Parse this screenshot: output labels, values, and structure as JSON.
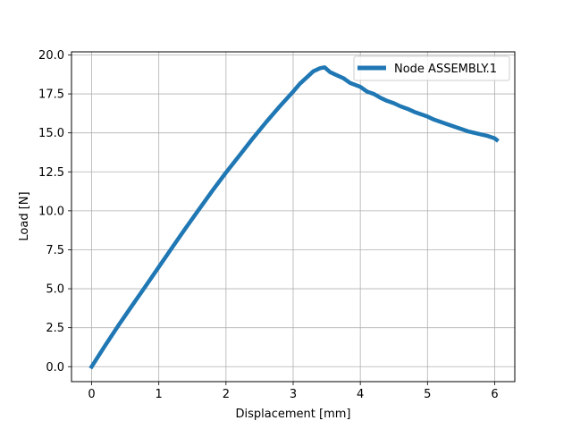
{
  "chart_data": {
    "type": "line",
    "title": "",
    "xlabel": "Displacement [mm]",
    "ylabel": "Load [N]",
    "xlim": [
      -0.3,
      6.3
    ],
    "ylim": [
      -0.96,
      20.2
    ],
    "xticks": [
      0,
      1,
      2,
      3,
      4,
      5,
      6
    ],
    "xtick_labels": [
      "0",
      "1",
      "2",
      "3",
      "4",
      "5",
      "6"
    ],
    "yticks": [
      0,
      2.5,
      5,
      7.5,
      10,
      12.5,
      15,
      17.5,
      20
    ],
    "ytick_labels": [
      "0.0",
      "2.5",
      "5.0",
      "7.5",
      "10.0",
      "12.5",
      "15.0",
      "17.5",
      "20.0"
    ],
    "grid": true,
    "legend_position": "upper right",
    "series": [
      {
        "name": "Node ASSEMBLY.1",
        "color": "#1f77b4",
        "x": [
          0,
          0.2,
          0.4,
          0.6,
          0.8,
          1.0,
          1.2,
          1.4,
          1.6,
          1.8,
          2.0,
          2.2,
          2.4,
          2.6,
          2.8,
          3.0,
          3.1,
          3.2,
          3.3,
          3.4,
          3.47,
          3.55,
          3.65,
          3.75,
          3.85,
          4.0,
          4.1,
          4.2,
          4.3,
          4.4,
          4.5,
          4.6,
          4.7,
          4.8,
          4.9,
          5.0,
          5.1,
          5.2,
          5.3,
          5.4,
          5.5,
          5.6,
          5.7,
          5.8,
          5.9,
          6.0,
          6.03
        ],
        "y": [
          0,
          1.35,
          2.65,
          3.9,
          5.15,
          6.4,
          7.65,
          8.9,
          10.1,
          11.3,
          12.45,
          13.55,
          14.65,
          15.7,
          16.7,
          17.65,
          18.15,
          18.55,
          18.95,
          19.15,
          19.2,
          18.9,
          18.7,
          18.5,
          18.2,
          17.95,
          17.65,
          17.5,
          17.25,
          17.05,
          16.9,
          16.7,
          16.55,
          16.35,
          16.2,
          16.05,
          15.85,
          15.7,
          15.55,
          15.4,
          15.25,
          15.1,
          15.0,
          14.9,
          14.8,
          14.65,
          14.55
        ]
      }
    ]
  }
}
